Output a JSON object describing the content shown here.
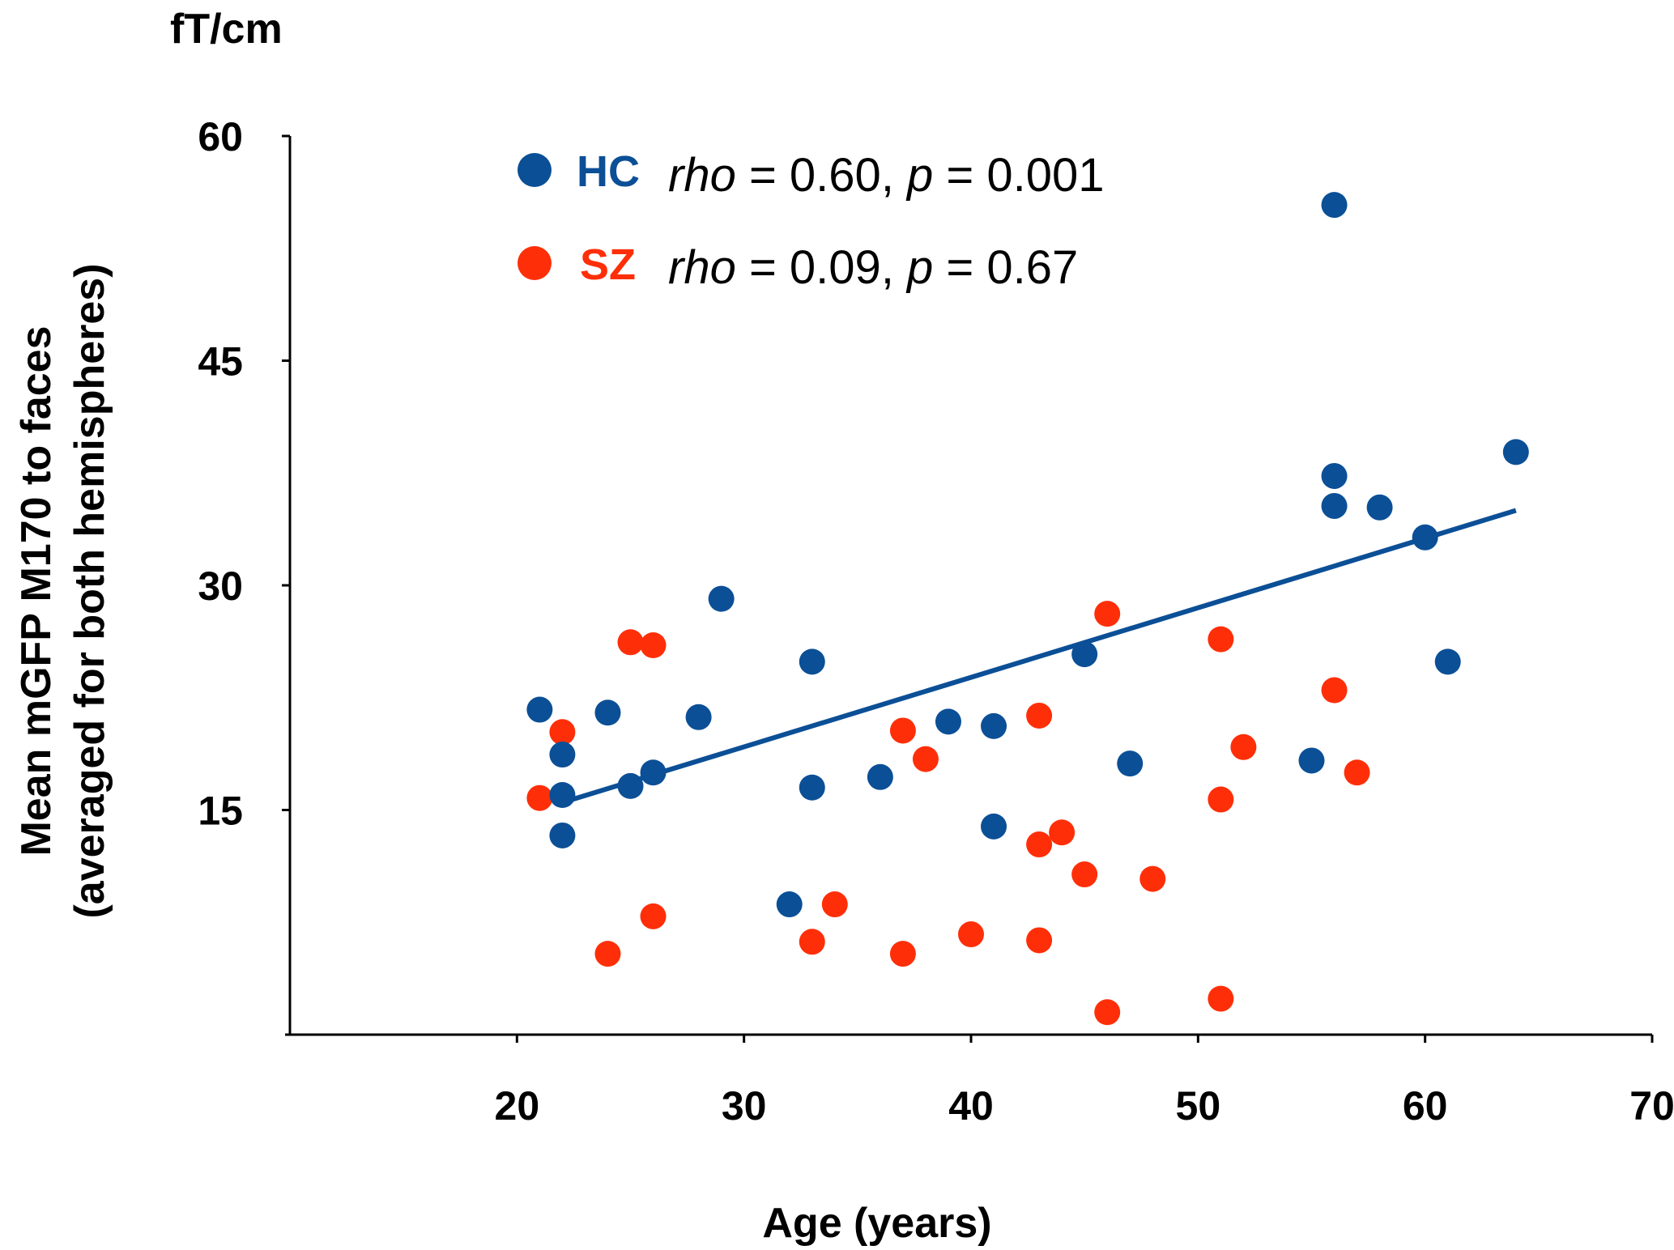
{
  "chart_data": {
    "type": "scatter",
    "unit_label": "fT/cm",
    "xlabel": "Age (years)",
    "ylabel_line1": "Mean mGFP M170 to faces",
    "ylabel_line2": "(averaged for both hemispheres)",
    "xlim": [
      10,
      70
    ],
    "ylim": [
      0,
      60
    ],
    "xticks": [
      "20",
      "30",
      "40",
      "50",
      "60",
      "70"
    ],
    "yticks": [
      "15",
      "30",
      "45",
      "60"
    ],
    "legend_position": "top-left",
    "series": [
      {
        "name": "HC",
        "color": "#0b4f96",
        "stat": {
          "rho_label": "rho",
          "rho_text": " = 0.60, ",
          "p_label": "p",
          "p_text": " = 0.001"
        },
        "trendline": {
          "x": [
            22,
            64
          ],
          "y": [
            15.5,
            35.0
          ]
        },
        "points": [
          {
            "x": 21,
            "y": 21.7
          },
          {
            "x": 22,
            "y": 18.7
          },
          {
            "x": 22,
            "y": 16.0
          },
          {
            "x": 22,
            "y": 13.3
          },
          {
            "x": 24,
            "y": 21.5
          },
          {
            "x": 25,
            "y": 16.6
          },
          {
            "x": 26,
            "y": 17.5
          },
          {
            "x": 28,
            "y": 21.2
          },
          {
            "x": 29,
            "y": 29.1
          },
          {
            "x": 32,
            "y": 8.7
          },
          {
            "x": 33,
            "y": 24.9
          },
          {
            "x": 33,
            "y": 16.5
          },
          {
            "x": 36,
            "y": 17.2
          },
          {
            "x": 39,
            "y": 20.9
          },
          {
            "x": 41,
            "y": 20.6
          },
          {
            "x": 41,
            "y": 13.9
          },
          {
            "x": 45,
            "y": 25.4
          },
          {
            "x": 47,
            "y": 18.1
          },
          {
            "x": 55,
            "y": 18.3
          },
          {
            "x": 56,
            "y": 55.4
          },
          {
            "x": 56,
            "y": 37.3
          },
          {
            "x": 56,
            "y": 35.3
          },
          {
            "x": 58,
            "y": 35.2
          },
          {
            "x": 60,
            "y": 33.2
          },
          {
            "x": 61,
            "y": 24.9
          },
          {
            "x": 64,
            "y": 38.9
          }
        ]
      },
      {
        "name": "SZ",
        "color": "#fe2f08",
        "stat": {
          "rho_label": "rho",
          "rho_text": " = 0.09, ",
          "p_label": "p",
          "p_text": " = 0.67"
        },
        "points": [
          {
            "x": 21,
            "y": 15.8
          },
          {
            "x": 22,
            "y": 20.2
          },
          {
            "x": 24,
            "y": 5.4
          },
          {
            "x": 25,
            "y": 26.2
          },
          {
            "x": 26,
            "y": 26.0
          },
          {
            "x": 26,
            "y": 7.9
          },
          {
            "x": 33,
            "y": 6.2
          },
          {
            "x": 34,
            "y": 8.7
          },
          {
            "x": 37,
            "y": 20.3
          },
          {
            "x": 37,
            "y": 5.4
          },
          {
            "x": 38,
            "y": 18.4
          },
          {
            "x": 40,
            "y": 6.7
          },
          {
            "x": 43,
            "y": 21.3
          },
          {
            "x": 43,
            "y": 12.7
          },
          {
            "x": 43,
            "y": 6.3
          },
          {
            "x": 44,
            "y": 13.5
          },
          {
            "x": 45,
            "y": 10.7
          },
          {
            "x": 46,
            "y": 28.1
          },
          {
            "x": 46,
            "y": 1.5
          },
          {
            "x": 48,
            "y": 10.4
          },
          {
            "x": 51,
            "y": 26.4
          },
          {
            "x": 51,
            "y": 15.7
          },
          {
            "x": 51,
            "y": 2.4
          },
          {
            "x": 52,
            "y": 19.2
          },
          {
            "x": 56,
            "y": 23.0
          },
          {
            "x": 57,
            "y": 17.5
          }
        ]
      }
    ]
  }
}
